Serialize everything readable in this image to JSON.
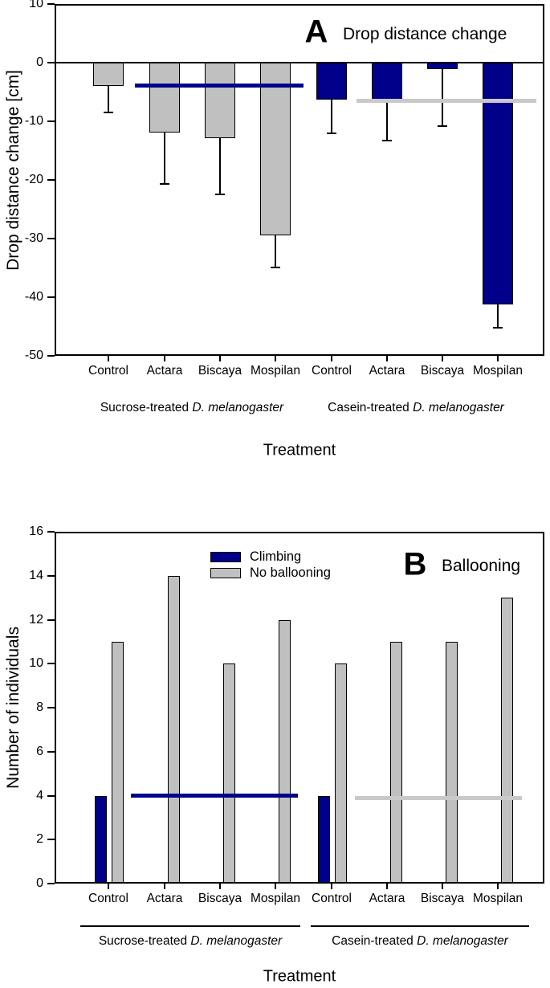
{
  "chart_data": [
    {
      "type": "bar",
      "panel_label": "A",
      "title": "Drop distance change",
      "xlabel": "Treatment",
      "ylabel": "Drop distance change [cm]",
      "ylim": [
        -50,
        10
      ],
      "yticks": [
        10,
        0,
        -10,
        -20,
        -30,
        -40,
        -50
      ],
      "grid": false,
      "error_bars": "downward, black, capped",
      "categories": [
        "Control",
        "Actara",
        "Biscaya",
        "Mospilan",
        "Control",
        "Actara",
        "Biscaya",
        "Mospilan"
      ],
      "groups": [
        {
          "prefix": "Sucrose-treated",
          "species": "D. melanogaster"
        },
        {
          "prefix": "Casein-treated",
          "species": "D. melanogaster"
        }
      ],
      "series": [
        {
          "name": "Sucrose-treated D. melanogaster",
          "color": "#c0c0c0",
          "values": [
            -4.0,
            -11.9,
            -12.9,
            -29.5
          ],
          "errors": [
            4.5,
            8.8,
            9.5,
            5.4
          ]
        },
        {
          "name": "Casein-treated D. melanogaster",
          "color": "#00008b",
          "values": [
            -6.3,
            -6.4,
            -1.1,
            -41.3
          ],
          "errors": [
            5.8,
            6.9,
            9.7,
            3.9
          ]
        }
      ],
      "reference_lines": [
        {
          "group": "Sucrose-treated",
          "value": -3.9,
          "color": "#00008b"
        },
        {
          "group": "Casein-treated",
          "value": -6.5,
          "color": "#c9c9c9"
        }
      ]
    },
    {
      "type": "bar",
      "panel_label": "B",
      "title": "Ballooning",
      "xlabel": "Treatment",
      "ylabel": "Number of individuals",
      "ylim": [
        0,
        16
      ],
      "yticks": [
        0,
        2,
        4,
        6,
        8,
        10,
        12,
        14,
        16
      ],
      "grid": false,
      "categories": [
        "Control",
        "Actara",
        "Biscaya",
        "Mospilan",
        "Control",
        "Actara",
        "Biscaya",
        "Mospilan"
      ],
      "groups": [
        {
          "prefix": "Sucrose-treated",
          "species": "D. melanogaster"
        },
        {
          "prefix": "Casein-treated",
          "species": "D. melanogaster"
        }
      ],
      "legend": {
        "position": "top-left",
        "entries": [
          {
            "label": "Climbing",
            "color": "#00008b"
          },
          {
            "label": "No ballooning",
            "color": "#c0c0c0"
          }
        ]
      },
      "series": [
        {
          "name": "Climbing",
          "color": "#00008b",
          "values": [
            4,
            0,
            0,
            0,
            4,
            0,
            0,
            0
          ]
        },
        {
          "name": "No ballooning",
          "color": "#c0c0c0",
          "values": [
            11,
            14,
            10,
            12,
            10,
            11,
            11,
            13
          ]
        }
      ],
      "reference_lines": [
        {
          "group": "Sucrose-treated",
          "value": 4.0,
          "color": "#00008b"
        },
        {
          "group": "Casein-treated",
          "value": 3.9,
          "color": "#c9c9c9"
        }
      ]
    }
  ]
}
